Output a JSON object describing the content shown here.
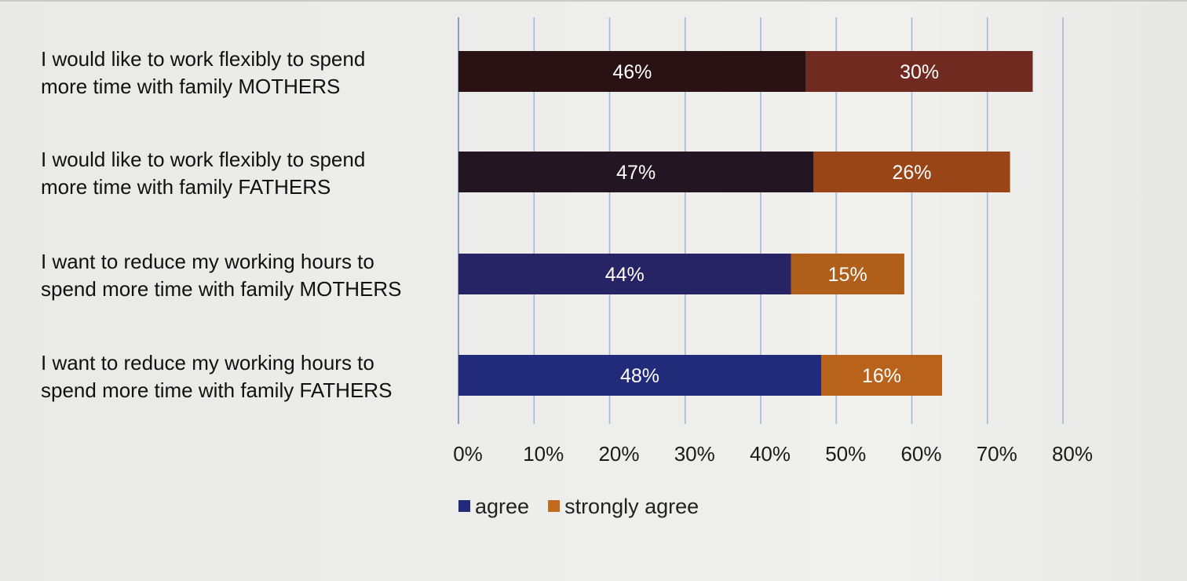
{
  "chart_data": {
    "type": "bar",
    "orientation": "horizontal",
    "stacked": true,
    "categories": [
      [
        "I would like to work flexibly to spend",
        "more time with family MOTHERS"
      ],
      [
        "I would like to work flexibly to spend",
        "more time with family FATHERS"
      ],
      [
        "I want to reduce my working hours to",
        "spend more time with family MOTHERS"
      ],
      [
        "I want to reduce my working hours to",
        "spend more time with family FATHERS"
      ]
    ],
    "series": [
      {
        "name": "agree",
        "values": [
          46,
          47,
          44,
          48
        ],
        "labels": [
          "46%",
          "47%",
          "44%",
          "48%"
        ],
        "colors": [
          "#2a1214",
          "#241522",
          "#272466",
          "#222a7a"
        ]
      },
      {
        "name": "strongly agree",
        "values": [
          30,
          26,
          15,
          16
        ],
        "labels": [
          "30%",
          "26%",
          "15%",
          "16%"
        ],
        "colors": [
          "#702a1f",
          "#9a4517",
          "#b05f1a",
          "#b8621b"
        ]
      }
    ],
    "xlim": [
      0,
      80
    ],
    "xticks": [
      "0%",
      "10%",
      "20%",
      "30%",
      "40%",
      "50%",
      "60%",
      "70%",
      "80%"
    ],
    "grid": true,
    "legend_position": "bottom-left",
    "legend_colors": {
      "agree": "#222a7a",
      "strongly agree": "#c06b1e"
    },
    "gridline_color": "#a9b6d6"
  }
}
